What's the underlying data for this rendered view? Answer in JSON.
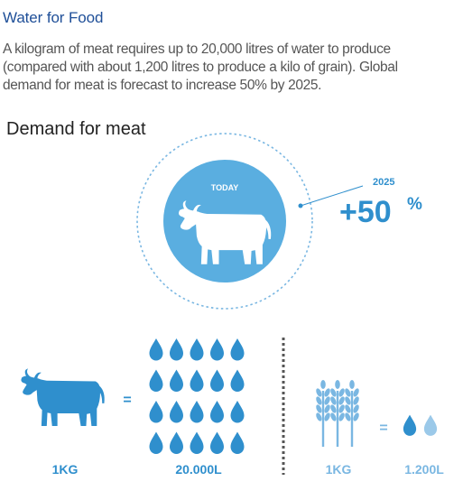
{
  "header": {
    "title": "Water for Food",
    "intro_lines": [
      "A kilogram of meat requires up to 20,000 litres of water to produce",
      "(compared with about 1,200 litres to produce a kilo of grain). Global",
      "demand for meat is forecast to increase 50% by 2025."
    ]
  },
  "demand": {
    "title": "Demand for meat",
    "today_label": "TODAY",
    "forecast_year": "2025",
    "forecast_value": "+50",
    "forecast_unit": "%"
  },
  "meat": {
    "weight": "1KG",
    "equals": "=",
    "water": "20.000L",
    "drop_count": 20
  },
  "grain": {
    "weight": "1KG",
    "equals": "=",
    "water": "1.200L",
    "drop_count": 2
  },
  "colors": {
    "title": "#1f4f98",
    "primary_blue": "#2f8fcd",
    "light_blue": "#7ab7e2",
    "circle_blue": "#5aaee0",
    "text_gray": "#555555",
    "divider": "#555555"
  },
  "icons": {
    "today_cow": "cow-icon",
    "meat_cow": "cow-icon",
    "water": "water-drop-icon",
    "grain": "wheat-icon"
  }
}
